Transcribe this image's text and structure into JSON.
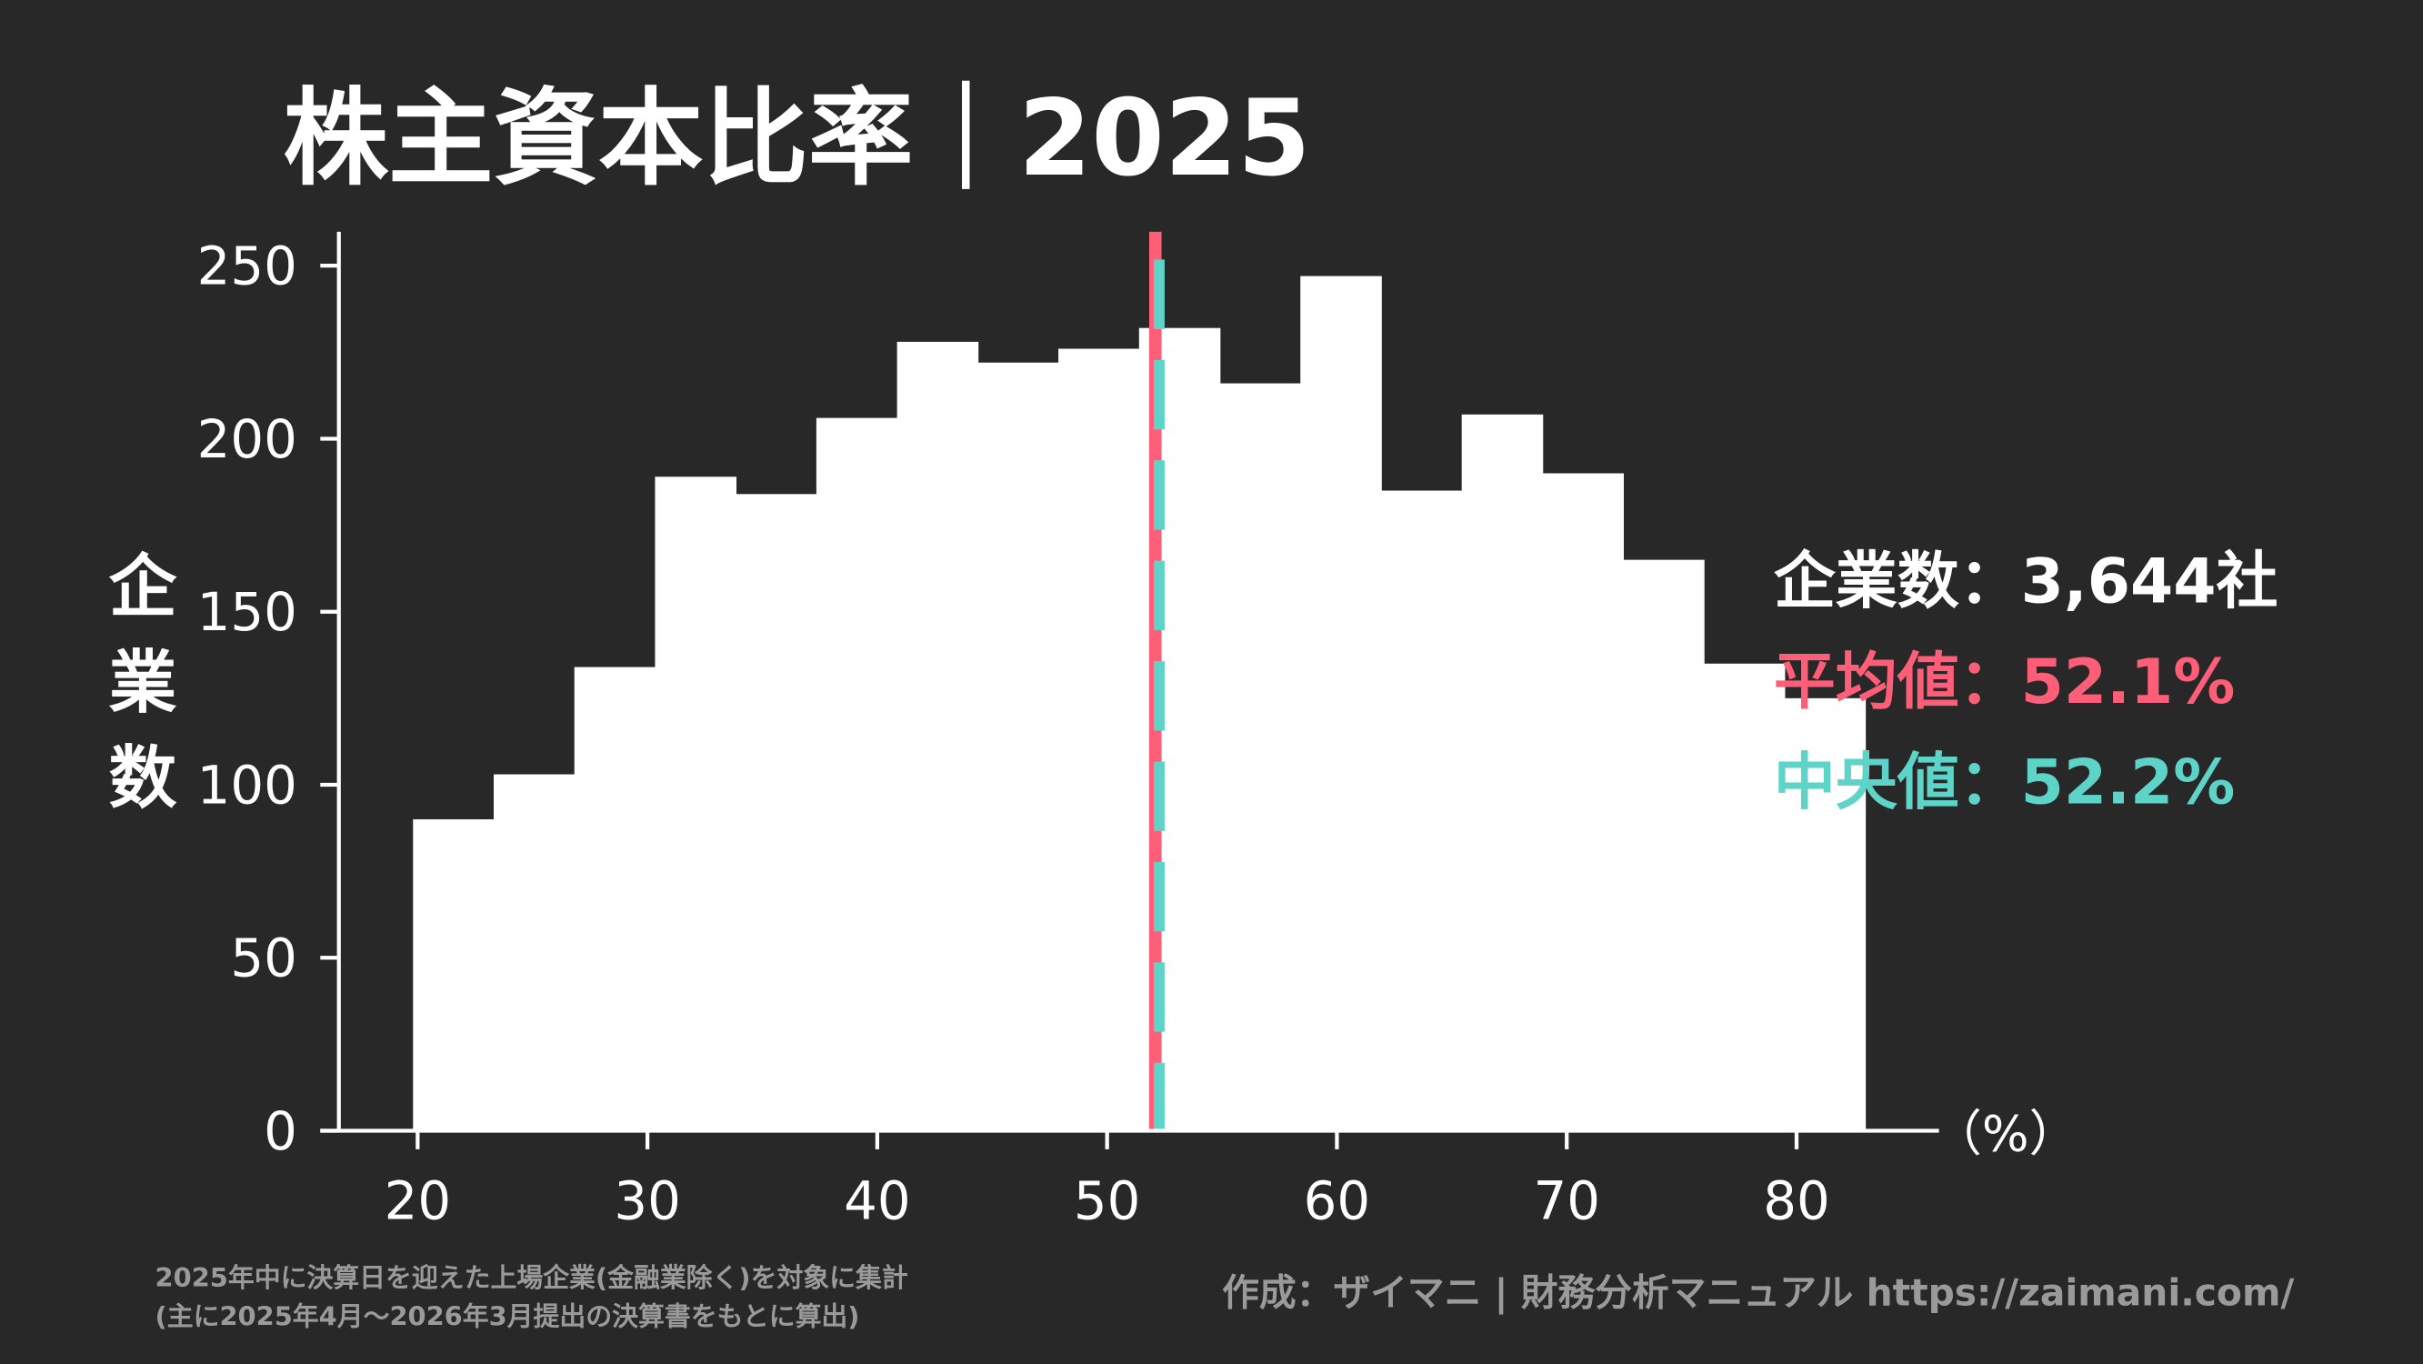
{
  "chart_data": {
    "type": "bar",
    "title": "株主資本比率｜2025",
    "xlabel": "（%）",
    "ylabel": "企業数",
    "bin_start": 19.8,
    "bin_width": 3.51,
    "values": [
      90,
      103,
      134,
      189,
      184,
      206,
      228,
      222,
      226,
      232,
      216,
      247,
      185,
      207,
      190,
      165,
      135,
      125
    ],
    "xlim": [
      16.7,
      86
    ],
    "ylim": [
      0,
      260
    ],
    "xticks": [
      20,
      30,
      40,
      50,
      60,
      70,
      80
    ],
    "yticks": [
      0,
      50,
      100,
      150,
      200,
      250
    ],
    "mean": 52.1,
    "median": 52.2,
    "grid": false
  },
  "stats": {
    "count_label": "企業数",
    "count_value": "3,644社",
    "mean_label": "平均値",
    "mean_value": "52.1%",
    "median_label": "中央値",
    "median_value": "52.2%",
    "separator": "："
  },
  "footer": {
    "note_line1": "2025年中に決算日を迎えた上場企業(金融業除く)を対象に集計",
    "note_line2": "(主に2025年4月〜2026年3月提出の決算書をもとに算出)",
    "credit": "作成：ザイマニ | 財務分析マニュアル https://zaimani.com/"
  },
  "colors": {
    "background": "#282828",
    "bars": "#ffffff",
    "mean": "#ff5e78",
    "median": "#5ed3c8",
    "footer": "#9a9a9a"
  }
}
